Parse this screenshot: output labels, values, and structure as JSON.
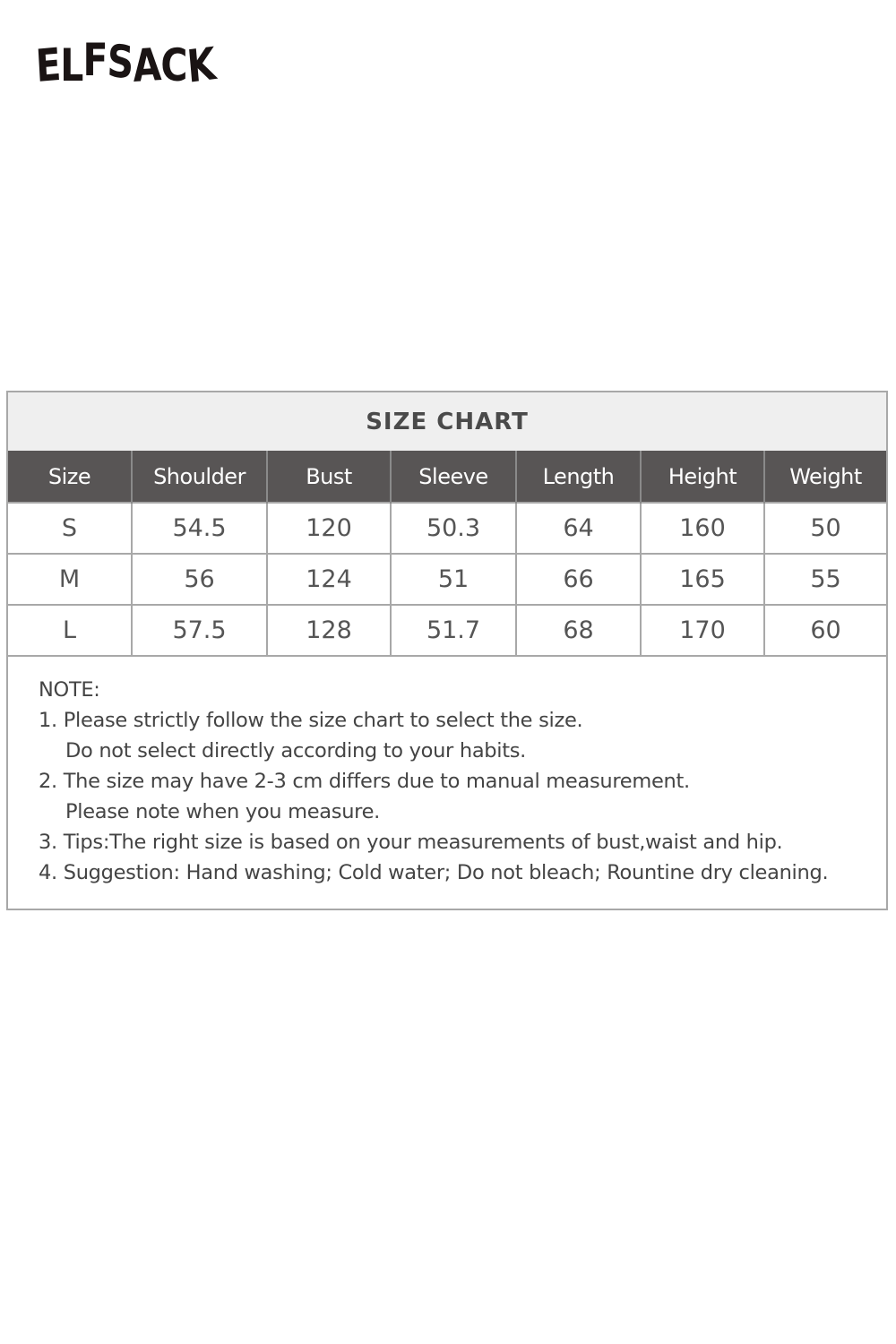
{
  "brand": {
    "logo_text": "ELFSACK"
  },
  "size_chart": {
    "title": "SIZE CHART",
    "columns": [
      "Size",
      "Shoulder",
      "Bust",
      "Sleeve",
      "Length",
      "Height",
      "Weight"
    ],
    "rows": [
      [
        "S",
        "54.5",
        "120",
        "50.3",
        "64",
        "160",
        "50"
      ],
      [
        "M",
        "56",
        "124",
        "51",
        "66",
        "165",
        "55"
      ],
      [
        "L",
        "57.5",
        "128",
        "51.7",
        "68",
        "170",
        "60"
      ]
    ]
  },
  "notes": {
    "heading": "NOTE:",
    "lines": [
      "1. Please strictly follow the size chart to select the size.",
      "Do not select directly according to your habits.",
      "2. The size may have 2-3 cm differs due to manual measurement.",
      "Please note when you measure.",
      "3. Tips:The right size is based on your measurements of bust,waist and hip.",
      "4. Suggestion: Hand washing; Cold water; Do not bleach; Rountine dry cleaning."
    ]
  }
}
